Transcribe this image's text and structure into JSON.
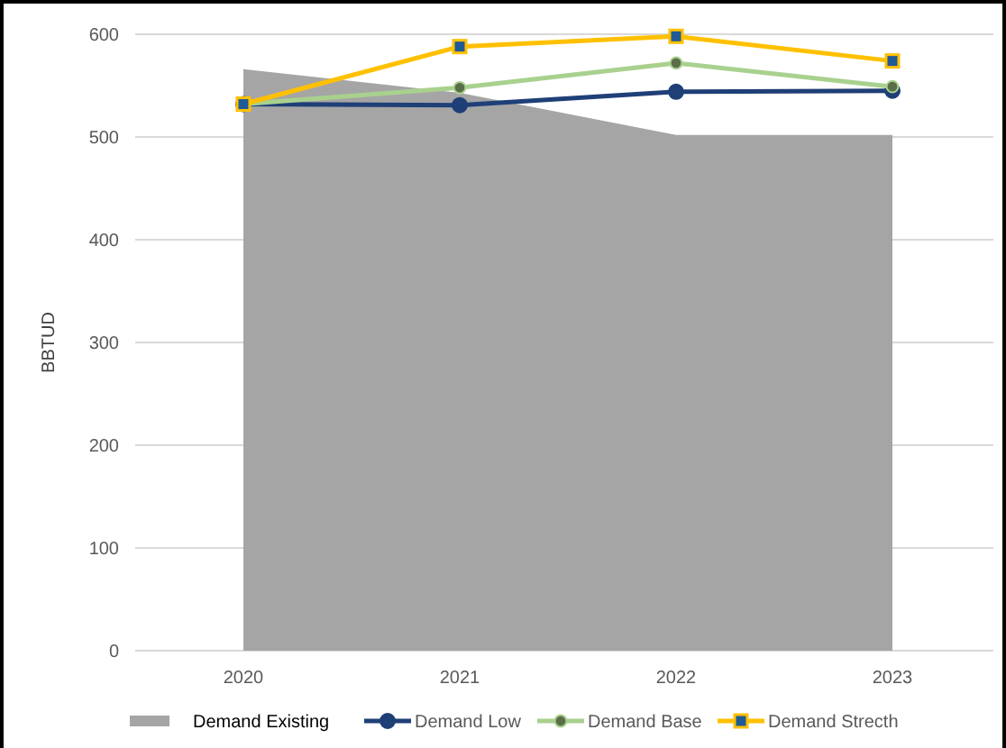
{
  "chart_data": {
    "type": "line",
    "ylabel": "BBTUD",
    "categories": [
      "2020",
      "2021",
      "2022",
      "2023"
    ],
    "ylim": [
      0,
      600
    ],
    "yticks": [
      0,
      100,
      200,
      300,
      400,
      500,
      600
    ],
    "grid": "y",
    "legend": "bottom",
    "series": [
      {
        "name": "Demand Existing",
        "type": "area",
        "color": "#a5a5a5",
        "values": [
          566,
          543,
          502,
          502
        ]
      },
      {
        "name": "Demand Low",
        "color": "#1f3f77",
        "marker": "circle",
        "values": [
          532,
          531,
          544,
          545
        ]
      },
      {
        "name": "Demand Base",
        "color": "#a9d18e",
        "marker": "circle",
        "values": [
          532,
          548,
          572,
          549
        ]
      },
      {
        "name": "Demand Strecth",
        "color": "#ffc000",
        "marker": "square",
        "values": [
          532,
          588,
          598,
          574
        ]
      }
    ]
  }
}
